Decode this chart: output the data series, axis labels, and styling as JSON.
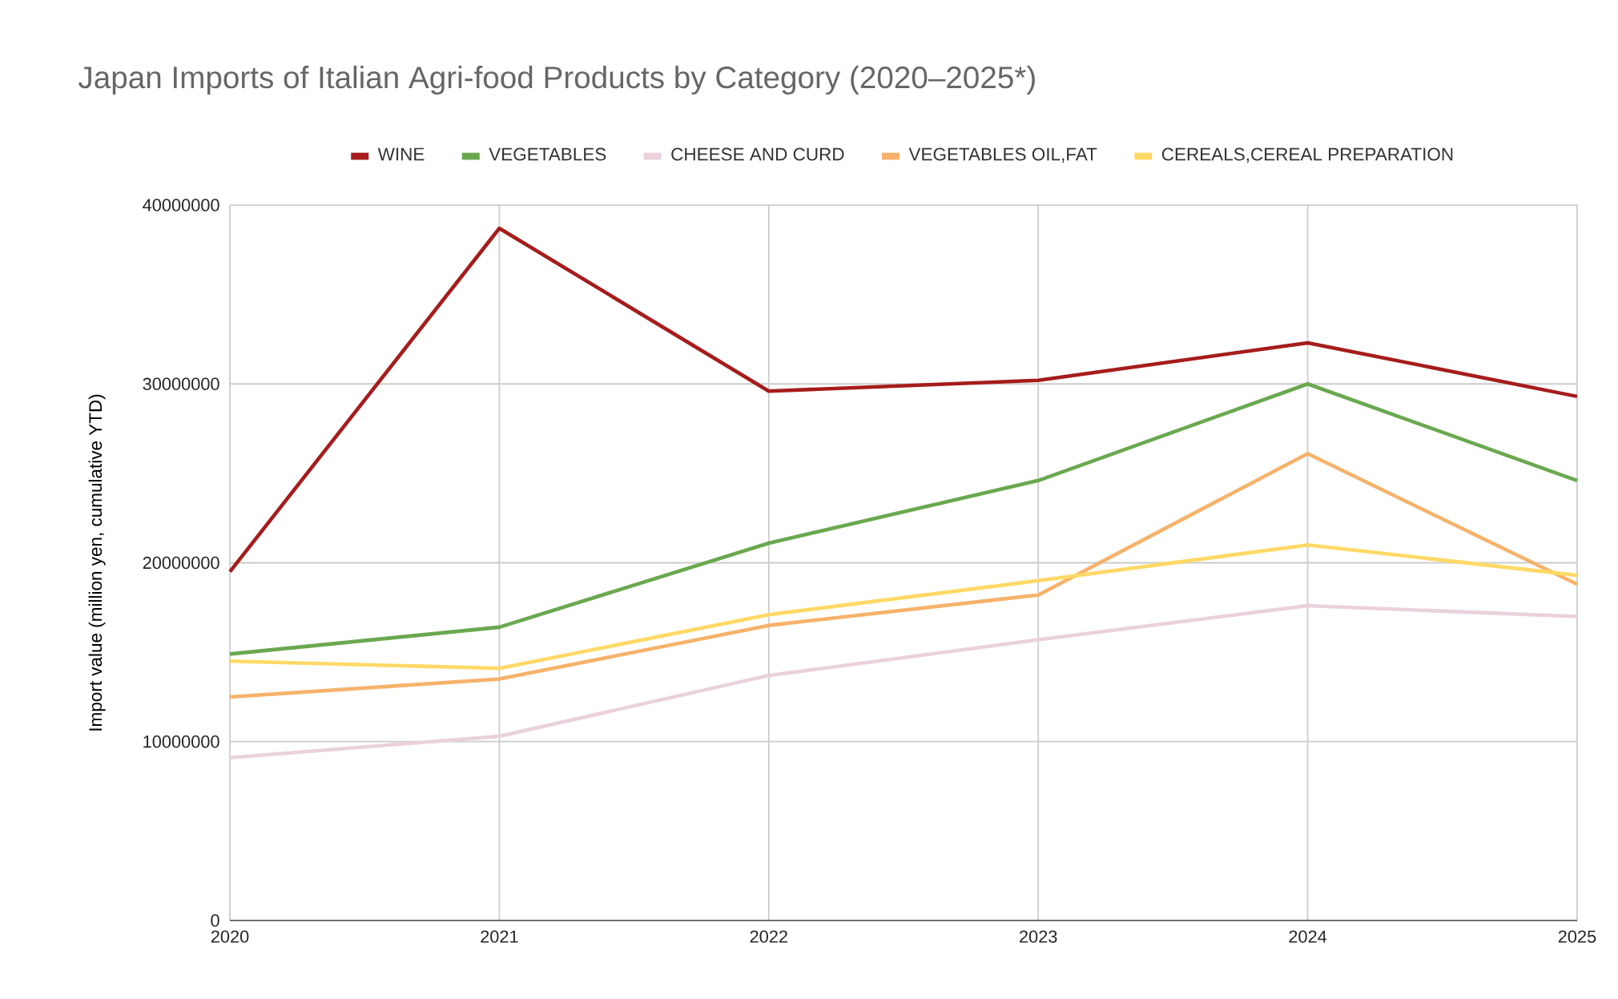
{
  "chart_data": {
    "type": "line",
    "title": "Japan Imports of Italian Agri-food Products by Category (2020–2025*)",
    "ylabel": "Import value (million yen, cumulative YTD)",
    "x": [
      2020,
      2021,
      2022,
      2023,
      2024,
      2025
    ],
    "series": [
      {
        "name": "WINE",
        "color": "#a61c1c",
        "values": [
          19500000,
          38700000,
          29600000,
          30200000,
          32300000,
          29300000
        ]
      },
      {
        "name": "VEGETABLES",
        "color": "#6aa84f",
        "values": [
          14900000,
          16400000,
          21100000,
          24600000,
          30000000,
          24600000
        ]
      },
      {
        "name": "CHEESE AND CURD",
        "color": "#ead1dc",
        "values": [
          9100000,
          10300000,
          13700000,
          15700000,
          17600000,
          17000000
        ]
      },
      {
        "name": "VEGETABLES OIL,FAT",
        "color": "#f6b26b",
        "values": [
          12500000,
          13500000,
          16500000,
          18200000,
          26100000,
          18800000
        ]
      },
      {
        "name": "CEREALS,CEREAL PREPARATION",
        "color": "#ffd966",
        "values": [
          14500000,
          14100000,
          17100000,
          19000000,
          21000000,
          19300000
        ]
      }
    ],
    "xlim": [
      2020,
      2025
    ],
    "xticks": [
      2020,
      2021,
      2022,
      2023,
      2024,
      2025
    ],
    "ylim": [
      0,
      40000000
    ],
    "yticks": [
      0,
      10000000,
      20000000,
      30000000,
      40000000
    ],
    "grid": true,
    "legend": "top",
    "marker": "none",
    "line_style": "solid"
  }
}
